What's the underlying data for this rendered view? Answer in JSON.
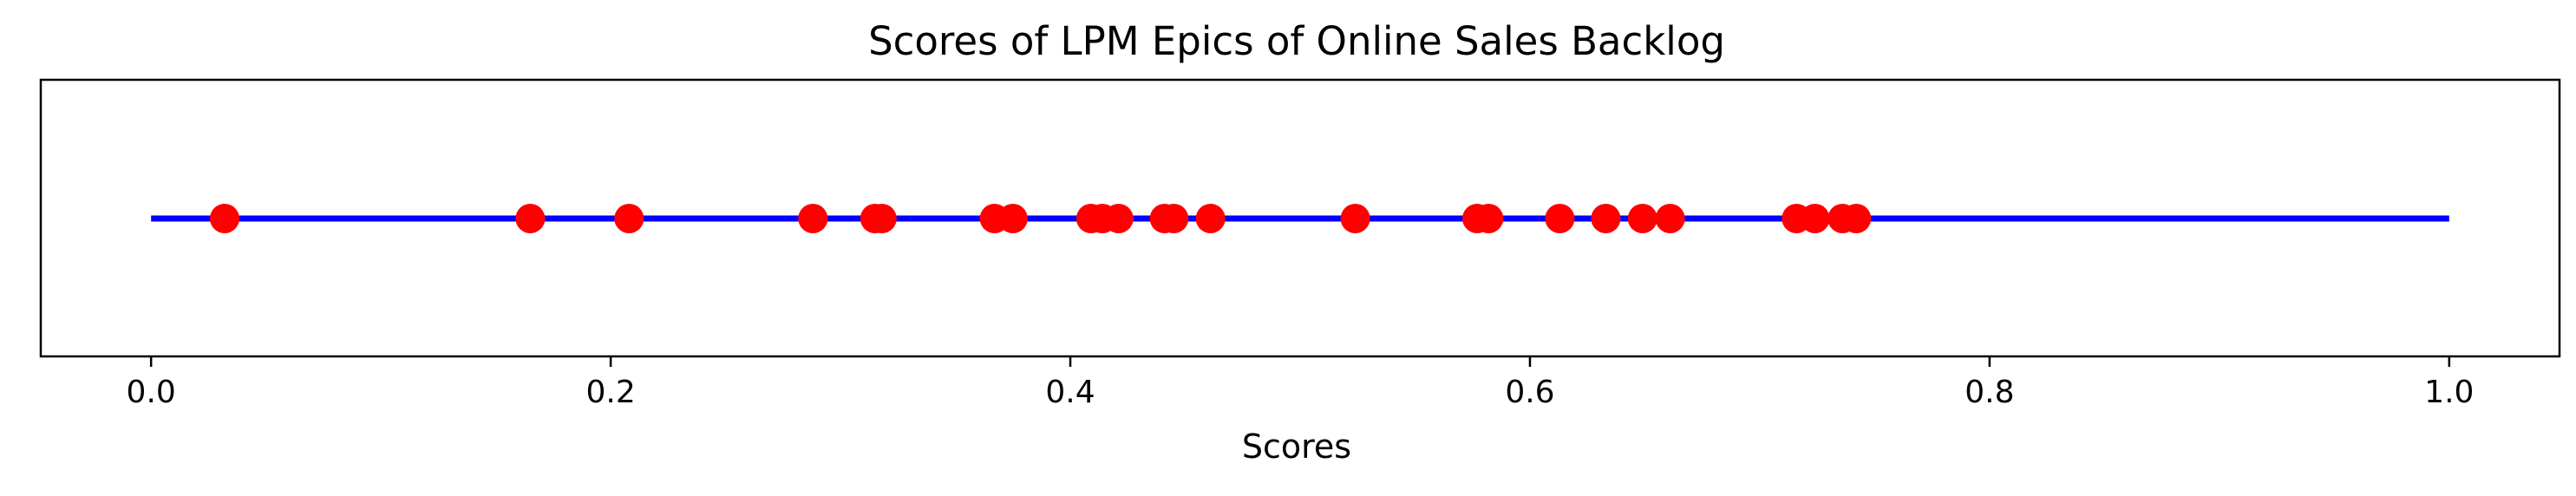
{
  "chart_data": {
    "type": "scatter",
    "title": "Scores of LPM Epics of Online Sales Backlog",
    "xlabel": "Scores",
    "ylabel": "",
    "xlim": [
      -0.048,
      1.048
    ],
    "xticks": [
      0.0,
      0.2,
      0.4,
      0.6,
      0.8,
      1.0
    ],
    "xtick_labels": [
      "0.0",
      "0.2",
      "0.4",
      "0.6",
      "0.8",
      "1.0"
    ],
    "line": {
      "x": [
        0.0,
        1.0
      ],
      "color": "#0000ff"
    },
    "points": [
      0.032,
      0.165,
      0.208,
      0.288,
      0.315,
      0.318,
      0.367,
      0.375,
      0.409,
      0.414,
      0.421,
      0.441,
      0.445,
      0.461,
      0.524,
      0.577,
      0.582,
      0.613,
      0.633,
      0.649,
      0.661,
      0.716,
      0.724,
      0.736,
      0.742
    ],
    "point_color": "#ff0000",
    "grid": false,
    "legend": "none"
  }
}
